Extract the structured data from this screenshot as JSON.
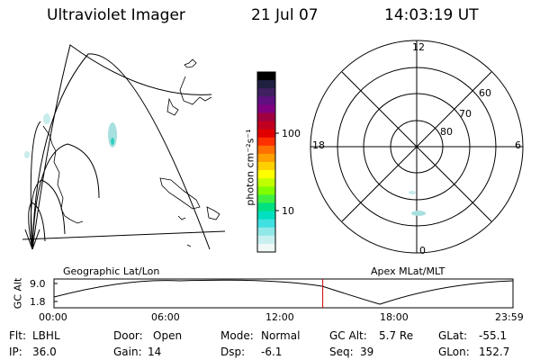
{
  "header": {
    "instrument": "Ultraviolet Imager",
    "date": "21 Jul 07",
    "time": "14:03:19 UT"
  },
  "colorbar": {
    "label": "photon cm⁻²s⁻¹",
    "ticks": [
      "100",
      "10"
    ],
    "colors": [
      "#000000",
      "#202040",
      "#402060",
      "#601080",
      "#800080",
      "#a00040",
      "#c00020",
      "#e00000",
      "#ff3000",
      "#ff7000",
      "#ffa000",
      "#ffd000",
      "#ffff00",
      "#c0ff00",
      "#80ff00",
      "#40f040",
      "#00e080",
      "#00e0c0",
      "#40e0e0",
      "#90e8e8",
      "#c8f0f0",
      "#f0f8f8"
    ]
  },
  "geographic_map": {
    "label": "Geographic Lat/Lon"
  },
  "polar_map": {
    "label": "Apex MLat/MLT",
    "mlt_labels": {
      "top": "12",
      "left": "18",
      "right": "6",
      "bottom": "0"
    },
    "mlat_labels": [
      "60",
      "70",
      "80"
    ]
  },
  "altitude_plot": {
    "ylabel": "GC Alt",
    "yticks": [
      "9.0",
      "1.8"
    ],
    "xticks": [
      "00:00",
      "06:00",
      "12:00",
      "18:00",
      "23:59"
    ],
    "current_time_marker_hours": 14.05,
    "marker_color": "#cc0000"
  },
  "status": {
    "filter_label": "Flt:",
    "filter_value": "LBHL",
    "door_label": "Door:",
    "door_value": "Open",
    "mode_label": "Mode:",
    "mode_value": "Normal",
    "gcalt_label": "GC Alt:",
    "gcalt_value": "5.7 Re",
    "glat_label": "GLat:",
    "glat_value": "-55.1",
    "ip_label": "IP:",
    "ip_value": "36.0",
    "gain_label": "Gain:",
    "gain_value": "14",
    "dsp_label": "Dsp:",
    "dsp_value": "-6.1",
    "seq_label": "Seq:",
    "seq_value": "39",
    "glon_label": "GLon:",
    "glon_value": "152.7"
  }
}
